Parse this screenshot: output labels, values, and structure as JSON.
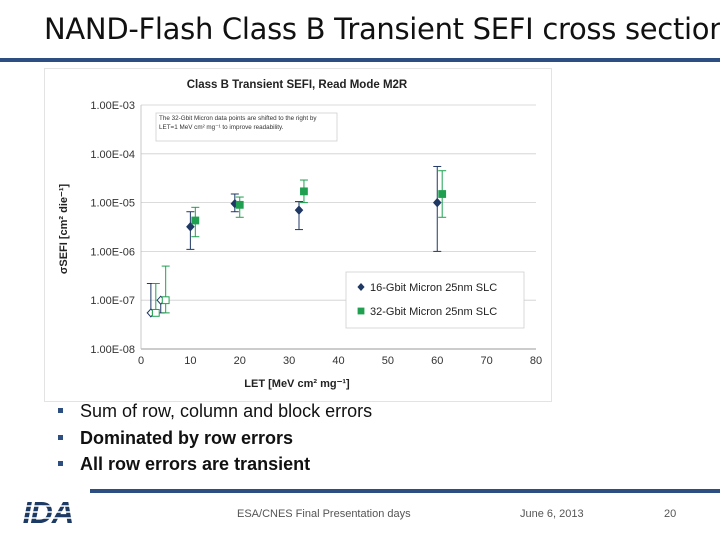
{
  "slide": {
    "title": "NAND-Flash Class B Transient SEFI cross section",
    "bullets": [
      "Sum of row, column and block errors",
      "Dominated by row errors",
      "All row errors are transient"
    ],
    "footer": {
      "logo_text": "IDA",
      "event": "ESA/CNES Final Presentation days",
      "date": "June 6, 2013",
      "page": "20"
    }
  },
  "chart_data": {
    "type": "scatter",
    "title": "Class B Transient SEFI, Read Mode M2R",
    "xlabel": "LET [MeV cm² mg⁻¹]",
    "ylabel": "σSEFI [cm² die⁻¹]",
    "xlim": [
      0,
      80
    ],
    "x_ticks": [
      0,
      10,
      20,
      30,
      40,
      50,
      60,
      70,
      80
    ],
    "y_scale": "log",
    "ylim": [
      1e-08,
      0.001
    ],
    "y_ticks": [
      0.001,
      0.0001,
      1e-05,
      1e-06,
      1e-07,
      1e-08
    ],
    "y_tick_labels": [
      "1.00E-03",
      "1.00E-04",
      "1.00E-05",
      "1.00E-06",
      "1.00E-07",
      "1.00E-08"
    ],
    "grid": "horizontal",
    "annotation": "The 32-Gbit Micron data points are shifted to the right by LET=1 MeV cm² mg⁻¹ to improve readability.",
    "legend_position": "bottom-right",
    "series": [
      {
        "name": "16-Gbit Micron 25nm SLC",
        "color": "#1f3864",
        "marker": "diamond",
        "points": [
          {
            "x": 2.0,
            "y": 5.5e-08,
            "lo": 5.5e-08,
            "hi": 2.2e-07,
            "open": true
          },
          {
            "x": 4.0,
            "y": 1e-07,
            "lo": 5.5e-08,
            "hi": 1e-07,
            "open": true
          },
          {
            "x": 10.0,
            "y": 3.2e-06,
            "lo": 1.1e-06,
            "hi": 6.5e-06,
            "open": false
          },
          {
            "x": 19.0,
            "y": 9.5e-06,
            "lo": 6.5e-06,
            "hi": 1.5e-05,
            "open": false
          },
          {
            "x": 32.0,
            "y": 7e-06,
            "lo": 2.8e-06,
            "hi": 1.05e-05,
            "open": false
          },
          {
            "x": 60.0,
            "y": 1e-05,
            "lo": 1e-06,
            "hi": 5.5e-05,
            "open": false
          }
        ]
      },
      {
        "name": "32-Gbit Micron 25nm SLC",
        "color": "#1fa050",
        "marker": "square",
        "points": [
          {
            "x": 3.0,
            "y": 5.5e-08,
            "lo": 5.5e-08,
            "hi": 2.2e-07,
            "open": true
          },
          {
            "x": 5.0,
            "y": 1e-07,
            "lo": 5.5e-08,
            "hi": 5e-07,
            "open": true
          },
          {
            "x": 11.0,
            "y": 4.3e-06,
            "lo": 2e-06,
            "hi": 8e-06,
            "open": false
          },
          {
            "x": 20.0,
            "y": 9e-06,
            "lo": 5e-06,
            "hi": 1.3e-05,
            "open": false
          },
          {
            "x": 33.0,
            "y": 1.7e-05,
            "lo": 1e-05,
            "hi": 2.9e-05,
            "open": false
          },
          {
            "x": 61.0,
            "y": 1.5e-05,
            "lo": 5e-06,
            "hi": 4.5e-05,
            "open": false
          }
        ]
      }
    ]
  }
}
